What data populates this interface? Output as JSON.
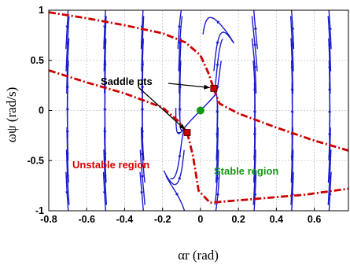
{
  "chart_data": {
    "type": "line",
    "title": "",
    "xlabel": "αr (rad)",
    "ylabel": "ωψ (rad/s)",
    "xlim": [
      -0.8,
      0.78
    ],
    "ylim": [
      -1,
      1
    ],
    "grid": true,
    "x_ticks": [
      "-0.8",
      "-0.6",
      "-0.4",
      "-0.2",
      "0",
      "0.2",
      "0.4",
      "0.6"
    ],
    "y_ticks": [
      "1",
      "0.5",
      "0",
      "-0.5",
      "-1"
    ],
    "colors": {
      "streamlines": "#1a1acc",
      "separatrix": "#cc0000",
      "saddle": "#cc0000",
      "stable_point": "#119911",
      "unstable_label": "#dd0000",
      "stable_label": "#119911"
    },
    "series": [
      {
        "x": [
          -0.8,
          -0.6,
          -0.4,
          -0.2,
          -0.12,
          -0.07
        ],
        "y": [
          0.4,
          0.28,
          0.17,
          0.03,
          -0.1,
          -0.22
        ]
      },
      {
        "x": [
          -0.07,
          -0.04,
          -0.01,
          0.05,
          0.3,
          0.55,
          0.78
        ],
        "y": [
          -0.22,
          -0.45,
          -0.8,
          -0.92,
          -0.88,
          -0.84,
          -0.78
        ]
      },
      {
        "x": [
          -0.8,
          -0.6,
          -0.4,
          -0.2,
          -0.08,
          0.0,
          0.04,
          0.07
        ],
        "y": [
          0.98,
          0.92,
          0.85,
          0.77,
          0.68,
          0.55,
          0.38,
          0.22
        ]
      },
      {
        "x": [
          0.07,
          0.1,
          0.2,
          0.4,
          0.6,
          0.78
        ],
        "y": [
          0.22,
          0.07,
          -0.03,
          -0.17,
          -0.3,
          -0.4
        ]
      }
    ],
    "saddle_points": [
      {
        "x": -0.07,
        "y": -0.22
      },
      {
        "x": 0.07,
        "y": 0.22
      }
    ],
    "stable_point": {
      "x": 0.0,
      "y": 0.0
    },
    "annotations": [
      {
        "text": "Saddle pts",
        "x": -0.34,
        "y": 0.35
      },
      {
        "text": "Unstable region",
        "x": -0.58,
        "y": -0.42
      },
      {
        "text": "Stable region",
        "x": 0.24,
        "y": -0.47
      }
    ]
  }
}
